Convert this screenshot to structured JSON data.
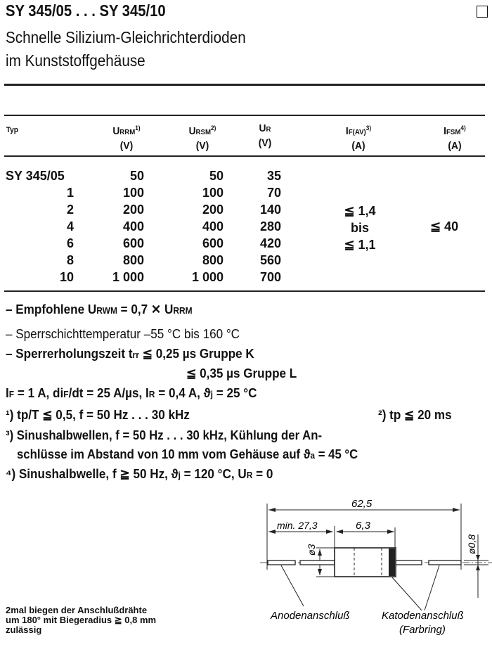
{
  "header": {
    "title": "SY 345/05 . . . SY 345/10",
    "subtitle_1": "Schnelle Silizium-Gleichrichterdioden",
    "subtitle_2": "im Kunststoffgehäuse"
  },
  "table": {
    "headers": [
      {
        "main": "Typ",
        "sub": "",
        "sup": "",
        "unit": ""
      },
      {
        "main": "U",
        "sub": "RRM",
        "sup": "1)",
        "unit": "(V)"
      },
      {
        "main": "U",
        "sub": "RSM",
        "sup": "2)",
        "unit": "(V)"
      },
      {
        "main": "U",
        "sub": "R",
        "sup": "",
        "unit": "(V)"
      },
      {
        "main": "I",
        "sub": "F(AV)",
        "sup": "3)",
        "unit": "(A)"
      },
      {
        "main": "I",
        "sub": "FSM",
        "sup": "4)",
        "unit": "(A)"
      }
    ],
    "rows": [
      {
        "typ": "SY 345/05",
        "urrm": "50",
        "ursm": "50",
        "ur": "35"
      },
      {
        "typ": "1",
        "urrm": "100",
        "ursm": "100",
        "ur": "70"
      },
      {
        "typ": "2",
        "urrm": "200",
        "ursm": "200",
        "ur": "140"
      },
      {
        "typ": "4",
        "urrm": "400",
        "ursm": "400",
        "ur": "280"
      },
      {
        "typ": "6",
        "urrm": "600",
        "ursm": "600",
        "ur": "420"
      },
      {
        "typ": "8",
        "urrm": "800",
        "ursm": "800",
        "ur": "560"
      },
      {
        "typ": "10",
        "urrm": "1 000",
        "ursm": "1 000",
        "ur": "700"
      }
    ],
    "ifav": [
      "≦ 1,4",
      "bis",
      "≦ 1,1"
    ],
    "ifsm": "≦ 40"
  },
  "notes": {
    "n1": [
      "– Empfohlene U",
      "RWM",
      " = 0,7 ✕ U",
      "RRM"
    ],
    "n2": "– Sperrschichttemperatur –55 °C bis 160 °C",
    "n3": "– Sperrerholungszeit t",
    "n3_sub": "rr",
    "n3_a": " ≦ 0,25 µs Gruppe K",
    "n3_b": "≦ 0,35 µs Gruppe L",
    "n4": [
      "I",
      "F",
      " = 1 A, di",
      "F",
      "/dt = 25 A/µs, I",
      "R",
      " = 0,4 A, ϑ",
      "j",
      " = 25 °C"
    ],
    "f1": "¹) tp/T ≦ 0,5, f = 50 Hz . . . 30 kHz",
    "f2": "²) tp ≦ 20 ms",
    "f3a": "³) Sinushalbwellen,   f = 50 Hz . . . 30 kHz,   Kühlung   der   An-",
    "f3b": "schlüsse im Abstand von 10 mm vom Gehäuse auf ϑ",
    "f3b_sub": "a",
    "f3b_end": " = 45 °C",
    "f4": [
      "⁴) Sinushalbwelle, f ≧ 50 Hz, ϑ",
      "j",
      " = 120 °C, U",
      "R",
      " = 0"
    ]
  },
  "bend_note": [
    "2mal biegen der Anschlußdrähte",
    "um 180° mit Biegeradius ≧ 0,8 mm",
    "zulässig"
  ],
  "diagram": {
    "total_length": "62,5",
    "min_lead": "min. 27,3",
    "body_length": "6,3",
    "body_dia": "ø3",
    "lead_dia": "ø0,8",
    "anode": "Anodenanschluß",
    "cathode": "Katodenanschluß",
    "cathode_note": "(Farbring)"
  }
}
